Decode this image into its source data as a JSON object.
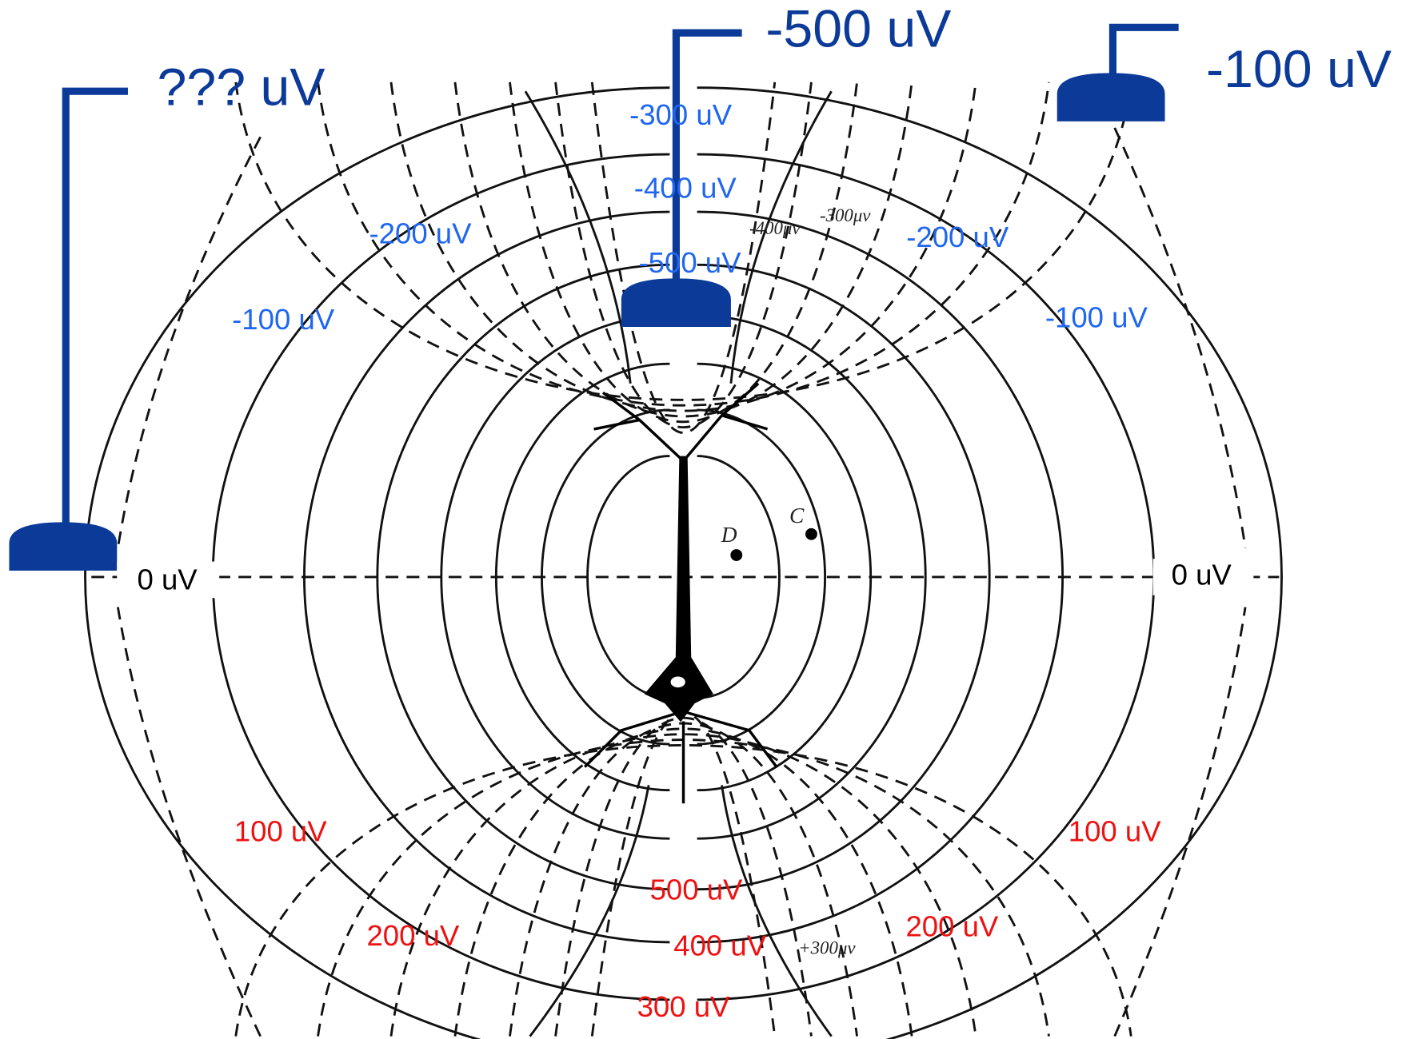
{
  "electrodes": [
    {
      "label": "??? uV"
    },
    {
      "label": "-500 uV"
    },
    {
      "label": "-100 uV"
    }
  ],
  "negative_labels": [
    "-300 uV",
    "-400 uV",
    "-500 uV",
    "-200 uV",
    "-200 uV",
    "-100 uV",
    "-100 uV"
  ],
  "zero_labels": [
    "0 uV",
    "0 uV"
  ],
  "positive_labels": [
    "100 uV",
    "100 uV",
    "500 uV",
    "200 uV",
    "200 uV",
    "400 uV",
    "300 uV"
  ],
  "figure_annotations": [
    "-400μν",
    "-300μν",
    "+300μν",
    "D",
    "C"
  ]
}
